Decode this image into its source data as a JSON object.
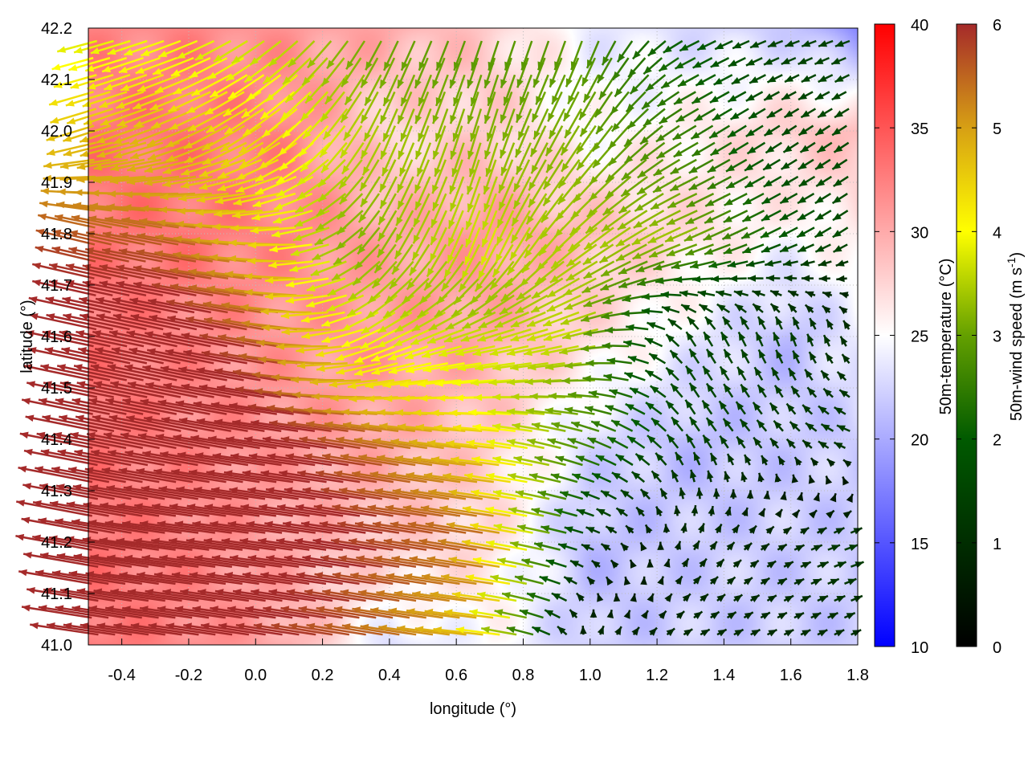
{
  "chart_data": {
    "type": "heatmap",
    "overlay": "vector",
    "xlabel": "longitude (°)",
    "ylabel": "latitude (°)",
    "xlim": [
      -0.5,
      1.8
    ],
    "ylim": [
      41.0,
      42.2
    ],
    "xticks": [
      "-0.4",
      "-0.2",
      "0.0",
      "0.2",
      "0.4",
      "0.6",
      "0.8",
      "1.0",
      "1.2",
      "1.4",
      "1.6",
      "1.8"
    ],
    "xtick_values": [
      -0.4,
      -0.2,
      0.0,
      0.2,
      0.4,
      0.6,
      0.8,
      1.0,
      1.2,
      1.4,
      1.6,
      1.8
    ],
    "yticks": [
      "41.0",
      "41.1",
      "41.2",
      "41.3",
      "41.4",
      "41.5",
      "41.6",
      "41.7",
      "41.8",
      "41.9",
      "42.0",
      "42.1",
      "42.2"
    ],
    "ytick_values": [
      41.0,
      41.1,
      41.2,
      41.3,
      41.4,
      41.5,
      41.6,
      41.7,
      41.8,
      41.9,
      42.0,
      42.1,
      42.2
    ],
    "grid": true,
    "temperature_colorbar": {
      "label": "50m-temperature (°C)",
      "range": [
        10,
        40
      ],
      "ticks": [
        "10",
        "15",
        "20",
        "25",
        "30",
        "35",
        "40"
      ],
      "tick_values": [
        10,
        15,
        20,
        25,
        30,
        35,
        40
      ],
      "colors": {
        "low": "#0000ff",
        "mid": "#ffffff",
        "high": "#ff0000"
      }
    },
    "wind_colorbar": {
      "label": "50m-wind speed (m s",
      "label_sup": "-1",
      "label_end": ")",
      "range": [
        0,
        6
      ],
      "ticks": [
        "0",
        "1",
        "2",
        "3",
        "4",
        "5",
        "6"
      ],
      "tick_values": [
        0,
        1,
        2,
        3,
        4,
        5,
        6
      ],
      "stops": [
        [
          0,
          "#000000"
        ],
        [
          2,
          "#005a00"
        ],
        [
          3,
          "#64a000"
        ],
        [
          4,
          "#ffff00"
        ],
        [
          5,
          "#d7a014"
        ],
        [
          6,
          "#a52a2a"
        ]
      ]
    },
    "grid_lon": [
      -0.5,
      -0.2,
      0.1,
      0.4,
      0.7,
      1.0,
      1.3,
      1.6,
      1.8
    ],
    "grid_lat": [
      42.2,
      42.0,
      41.8,
      41.6,
      41.4,
      41.2,
      41.0
    ],
    "temperature": [
      [
        32,
        32,
        31,
        30,
        28,
        24,
        23,
        22,
        18
      ],
      [
        33,
        33,
        32,
        27,
        28,
        25,
        26,
        28,
        29
      ],
      [
        33,
        33,
        32,
        30,
        31,
        29,
        27,
        25,
        26
      ],
      [
        33,
        32,
        31,
        31,
        30,
        27,
        24,
        21,
        24
      ],
      [
        33,
        32,
        31,
        30,
        28,
        23,
        21,
        22,
        22
      ],
      [
        33,
        32,
        30,
        28,
        27,
        21,
        22,
        22,
        22
      ],
      [
        33,
        32,
        30,
        23,
        25,
        22,
        22,
        22,
        22
      ]
    ],
    "wind_u": [
      [
        -8,
        -8,
        -6,
        -3,
        -2,
        -2,
        -4,
        -3,
        -3
      ],
      [
        -10,
        -10,
        -8,
        -3,
        -2,
        -4,
        -5,
        -3,
        -3
      ],
      [
        -12,
        -12,
        -10,
        -4,
        -3,
        -6,
        -7,
        -4,
        -3
      ],
      [
        -14,
        -14,
        -12,
        -8,
        -8,
        -8,
        -2,
        -1,
        -1
      ],
      [
        -15,
        -15,
        -14,
        -12,
        -10,
        -6,
        -2,
        -2,
        -3
      ],
      [
        -16,
        -16,
        -15,
        -13,
        -12,
        -3,
        1,
        2,
        3
      ],
      [
        -14,
        -14,
        -13,
        -12,
        -10,
        1,
        2,
        2,
        2
      ]
    ],
    "wind_v": [
      [
        -2,
        -3,
        -5,
        -6,
        -6,
        -6,
        -2,
        -1,
        -1
      ],
      [
        -3,
        -4,
        -6,
        -7,
        -7,
        -6,
        -3,
        -2,
        -2
      ],
      [
        3,
        2,
        0,
        -6,
        -8,
        -5,
        -3,
        -2,
        -2
      ],
      [
        3,
        3,
        2,
        -4,
        -2,
        -2,
        3,
        3,
        2
      ],
      [
        3,
        3,
        2,
        2,
        1,
        2,
        3,
        2,
        1
      ],
      [
        3,
        2,
        2,
        2,
        2,
        1,
        2,
        1,
        1
      ],
      [
        2,
        2,
        2,
        2,
        1,
        2,
        1,
        1,
        1
      ]
    ]
  }
}
